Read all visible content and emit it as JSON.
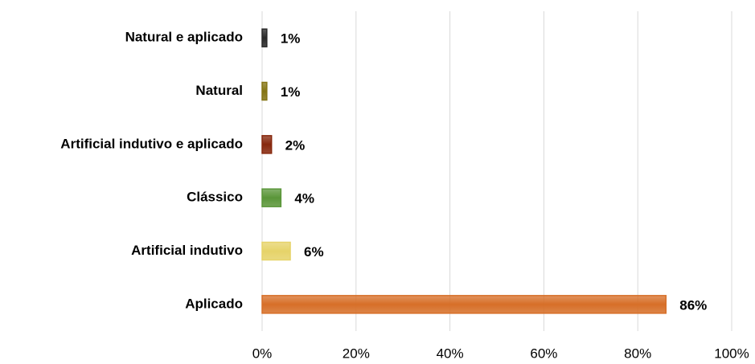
{
  "chart_data": {
    "type": "bar",
    "orientation": "horizontal",
    "categories": [
      "Natural e aplicado",
      "Natural",
      "Artificial indutivo e aplicado",
      "Clássico",
      "Artificial indutivo",
      "Aplicado"
    ],
    "values": [
      1,
      1,
      2,
      4,
      6,
      86
    ],
    "value_labels": [
      "1%",
      "1%",
      "2%",
      "4%",
      "6%",
      "86%"
    ],
    "colors": [
      "#2b2b2b",
      "#8c7a14",
      "#8e2a0e",
      "#5f9e3c",
      "#f2de6e",
      "#e2752a"
    ],
    "xlim": [
      0,
      100
    ],
    "xticks": [
      {
        "value": 0,
        "label": "0%"
      },
      {
        "value": 20,
        "label": "20%"
      },
      {
        "value": 40,
        "label": "40%"
      },
      {
        "value": 60,
        "label": "60%"
      },
      {
        "value": 80,
        "label": "80%"
      },
      {
        "value": 100,
        "label": "100%"
      }
    ],
    "grid": true
  }
}
